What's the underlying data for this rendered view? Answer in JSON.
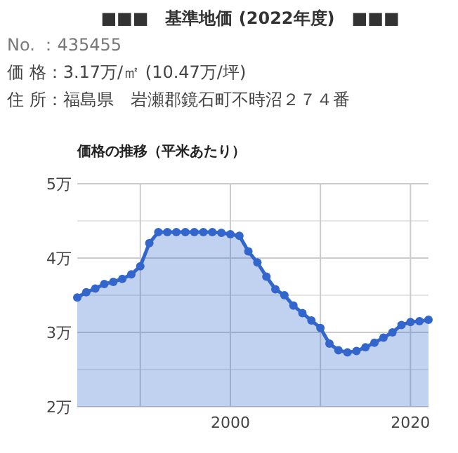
{
  "chart_data": {
    "type": "area",
    "title": "■■■　基準地価 (2022年度)　■■■",
    "subtitle": "価格の推移（平米あたり）",
    "annotations": [
      "No. ：435455",
      "価 格：3.17万/㎡ (10.47万/坪)",
      "住 所：福島県　岩瀬郡鏡石町不時沼２７４番"
    ],
    "x": [
      1983,
      1984,
      1985,
      1986,
      1987,
      1988,
      1989,
      1990,
      1991,
      1992,
      1993,
      1994,
      1995,
      1996,
      1997,
      1998,
      1999,
      2000,
      2001,
      2002,
      2003,
      2004,
      2005,
      2006,
      2007,
      2008,
      2009,
      2010,
      2011,
      2012,
      2013,
      2014,
      2015,
      2016,
      2017,
      2018,
      2019,
      2020,
      2021,
      2022
    ],
    "series": [
      {
        "color": "#3366cc",
        "values": [
          3.47,
          3.54,
          3.59,
          3.65,
          3.68,
          3.72,
          3.78,
          3.89,
          4.2,
          4.35,
          4.35,
          4.35,
          4.35,
          4.35,
          4.35,
          4.35,
          4.34,
          4.32,
          4.3,
          4.09,
          3.94,
          3.75,
          3.58,
          3.5,
          3.36,
          3.26,
          3.16,
          3.06,
          2.85,
          2.76,
          2.73,
          2.75,
          2.8,
          2.86,
          2.93,
          3.0,
          3.1,
          3.14,
          3.15,
          3.17
        ]
      }
    ],
    "xlim": [
      1983,
      2022
    ],
    "xticks": [
      {
        "value": 1990,
        "label": null
      },
      2000,
      {
        "value": 2010,
        "label": null
      },
      2020
    ],
    "ylim": [
      2,
      5
    ],
    "yticks": [
      {
        "value": 2,
        "label": "2万"
      },
      {
        "value": 2.5,
        "label": null
      },
      {
        "value": 3,
        "label": "3万"
      },
      {
        "value": 3.5,
        "label": null
      },
      {
        "value": 4,
        "label": "4万"
      },
      {
        "value": 4.5,
        "label": null
      },
      {
        "value": 5,
        "label": "5万"
      }
    ],
    "grid": true,
    "marker": "circle",
    "line_style": "solid"
  }
}
